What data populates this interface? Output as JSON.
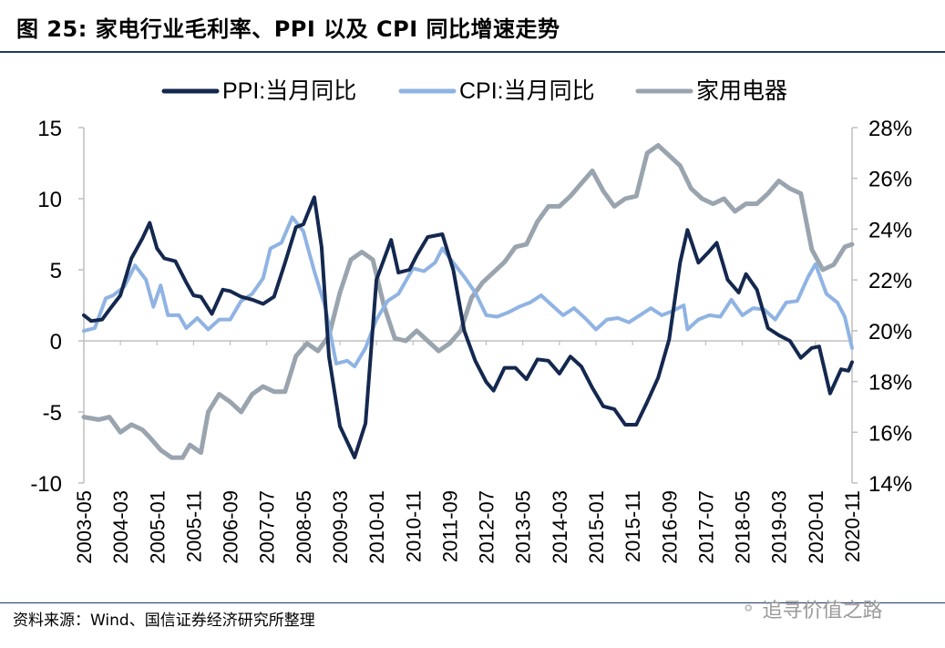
{
  "header": {
    "title": "图 25:  家电行业毛利率、PPI 以及 CPI 同比增速走势"
  },
  "footer": {
    "source": "资料来源：Wind、国信证券经济研究所整理",
    "watermark": "追寻价值之路",
    "watermark_icon": "wechat-icon"
  },
  "colors": {
    "ppi": "#14284f",
    "cpi": "#8fb3e3",
    "appliance": "#9aa4ae",
    "rule": "#1f3864"
  },
  "chart_data": {
    "type": "line",
    "title": "",
    "xlabel": "",
    "ylabel_left": "",
    "ylabel_right": "",
    "legend_position": "top-center",
    "grid": false,
    "y_left_range": [
      -10,
      15
    ],
    "y_left_ticks": [
      "15",
      "10",
      "5",
      "0",
      "-5",
      "-10"
    ],
    "y_right_range": [
      14,
      28
    ],
    "y_right_ticks": [
      "28%",
      "26%",
      "24%",
      "22%",
      "20%",
      "18%",
      "16%",
      "14%"
    ],
    "x_range": [
      "2003-05",
      "2020-11"
    ],
    "x_ticks": [
      "2003-05",
      "2004-03",
      "2005-01",
      "2005-11",
      "2006-09",
      "2007-07",
      "2008-05",
      "2009-03",
      "2010-01",
      "2010-11",
      "2011-09",
      "2012-07",
      "2013-05",
      "2014-03",
      "2015-01",
      "2015-11",
      "2016-09",
      "2017-07",
      "2018-05",
      "2019-03",
      "2020-01",
      "2020-11"
    ],
    "series": [
      {
        "name": "PPI:当月同比",
        "axis": "left",
        "points": [
          [
            "2003-05",
            1.8
          ],
          [
            "2003-07",
            1.4
          ],
          [
            "2003-10",
            1.5
          ],
          [
            "2003-12",
            2.2
          ],
          [
            "2004-03",
            3.2
          ],
          [
            "2004-06",
            5.8
          ],
          [
            "2004-09",
            7.2
          ],
          [
            "2004-11",
            8.3
          ],
          [
            "2005-01",
            6.5
          ],
          [
            "2005-03",
            5.8
          ],
          [
            "2005-06",
            5.6
          ],
          [
            "2005-09",
            4.1
          ],
          [
            "2005-11",
            3.2
          ],
          [
            "2006-01",
            3.1
          ],
          [
            "2006-04",
            1.9
          ],
          [
            "2006-07",
            3.6
          ],
          [
            "2006-09",
            3.5
          ],
          [
            "2006-12",
            3.1
          ],
          [
            "2007-03",
            2.9
          ],
          [
            "2007-06",
            2.6
          ],
          [
            "2007-09",
            3.1
          ],
          [
            "2007-12",
            5.5
          ],
          [
            "2008-03",
            8.0
          ],
          [
            "2008-05",
            8.2
          ],
          [
            "2008-08",
            10.1
          ],
          [
            "2008-10",
            6.6
          ],
          [
            "2008-12",
            -1.1
          ],
          [
            "2009-03",
            -6.0
          ],
          [
            "2009-07",
            -8.2
          ],
          [
            "2009-10",
            -5.8
          ],
          [
            "2010-01",
            4.3
          ],
          [
            "2010-05",
            7.1
          ],
          [
            "2010-07",
            4.8
          ],
          [
            "2010-10",
            5.0
          ],
          [
            "2010-12",
            6.0
          ],
          [
            "2011-03",
            7.3
          ],
          [
            "2011-07",
            7.5
          ],
          [
            "2011-10",
            5.0
          ],
          [
            "2012-01",
            0.7
          ],
          [
            "2012-04",
            -1.4
          ],
          [
            "2012-07",
            -2.9
          ],
          [
            "2012-09",
            -3.5
          ],
          [
            "2012-12",
            -1.9
          ],
          [
            "2013-03",
            -1.9
          ],
          [
            "2013-06",
            -2.7
          ],
          [
            "2013-09",
            -1.3
          ],
          [
            "2013-12",
            -1.4
          ],
          [
            "2014-03",
            -2.3
          ],
          [
            "2014-06",
            -1.1
          ],
          [
            "2014-09",
            -1.8
          ],
          [
            "2014-12",
            -3.3
          ],
          [
            "2015-03",
            -4.6
          ],
          [
            "2015-06",
            -4.8
          ],
          [
            "2015-09",
            -5.9
          ],
          [
            "2015-12",
            -5.9
          ],
          [
            "2016-03",
            -4.3
          ],
          [
            "2016-06",
            -2.6
          ],
          [
            "2016-09",
            0.1
          ],
          [
            "2016-12",
            5.5
          ],
          [
            "2017-02",
            7.8
          ],
          [
            "2017-05",
            5.5
          ],
          [
            "2017-08",
            6.3
          ],
          [
            "2017-10",
            6.9
          ],
          [
            "2018-01",
            4.3
          ],
          [
            "2018-04",
            3.4
          ],
          [
            "2018-06",
            4.7
          ],
          [
            "2018-09",
            3.6
          ],
          [
            "2018-12",
            0.9
          ],
          [
            "2019-03",
            0.4
          ],
          [
            "2019-06",
            0.0
          ],
          [
            "2019-09",
            -1.2
          ],
          [
            "2019-12",
            -0.5
          ],
          [
            "2020-02",
            -0.4
          ],
          [
            "2020-05",
            -3.7
          ],
          [
            "2020-08",
            -2.0
          ],
          [
            "2020-10",
            -2.1
          ],
          [
            "2020-11",
            -1.5
          ]
        ]
      },
      {
        "name": "CPI:当月同比",
        "axis": "left",
        "points": [
          [
            "2003-05",
            0.7
          ],
          [
            "2003-08",
            0.9
          ],
          [
            "2003-11",
            3.0
          ],
          [
            "2004-01",
            3.2
          ],
          [
            "2004-04",
            3.8
          ],
          [
            "2004-07",
            5.3
          ],
          [
            "2004-10",
            4.3
          ],
          [
            "2004-12",
            2.4
          ],
          [
            "2005-02",
            3.9
          ],
          [
            "2005-04",
            1.8
          ],
          [
            "2005-07",
            1.8
          ],
          [
            "2005-09",
            0.9
          ],
          [
            "2005-12",
            1.6
          ],
          [
            "2006-03",
            0.8
          ],
          [
            "2006-06",
            1.5
          ],
          [
            "2006-09",
            1.5
          ],
          [
            "2006-12",
            2.8
          ],
          [
            "2007-03",
            3.3
          ],
          [
            "2007-06",
            4.4
          ],
          [
            "2007-08",
            6.5
          ],
          [
            "2007-11",
            6.9
          ],
          [
            "2008-02",
            8.7
          ],
          [
            "2008-05",
            7.7
          ],
          [
            "2008-08",
            4.9
          ],
          [
            "2008-11",
            2.4
          ],
          [
            "2009-02",
            -1.6
          ],
          [
            "2009-05",
            -1.4
          ],
          [
            "2009-07",
            -1.8
          ],
          [
            "2009-10",
            -0.5
          ],
          [
            "2010-01",
            1.5
          ],
          [
            "2010-04",
            2.8
          ],
          [
            "2010-07",
            3.3
          ],
          [
            "2010-11",
            5.1
          ],
          [
            "2011-02",
            4.9
          ],
          [
            "2011-05",
            5.5
          ],
          [
            "2011-07",
            6.5
          ],
          [
            "2011-10",
            5.5
          ],
          [
            "2012-01",
            4.5
          ],
          [
            "2012-04",
            3.4
          ],
          [
            "2012-07",
            1.8
          ],
          [
            "2012-10",
            1.7
          ],
          [
            "2013-01",
            2.0
          ],
          [
            "2013-04",
            2.4
          ],
          [
            "2013-07",
            2.7
          ],
          [
            "2013-10",
            3.2
          ],
          [
            "2014-01",
            2.5
          ],
          [
            "2014-04",
            1.8
          ],
          [
            "2014-07",
            2.3
          ],
          [
            "2014-10",
            1.6
          ],
          [
            "2015-01",
            0.8
          ],
          [
            "2015-04",
            1.5
          ],
          [
            "2015-07",
            1.6
          ],
          [
            "2015-10",
            1.3
          ],
          [
            "2016-01",
            1.8
          ],
          [
            "2016-04",
            2.3
          ],
          [
            "2016-07",
            1.8
          ],
          [
            "2016-10",
            2.1
          ],
          [
            "2017-01",
            2.5
          ],
          [
            "2017-02",
            0.8
          ],
          [
            "2017-05",
            1.5
          ],
          [
            "2017-08",
            1.8
          ],
          [
            "2017-11",
            1.7
          ],
          [
            "2018-02",
            2.9
          ],
          [
            "2018-05",
            1.8
          ],
          [
            "2018-08",
            2.3
          ],
          [
            "2018-11",
            2.2
          ],
          [
            "2019-02",
            1.5
          ],
          [
            "2019-05",
            2.7
          ],
          [
            "2019-08",
            2.8
          ],
          [
            "2019-11",
            4.5
          ],
          [
            "2020-01",
            5.4
          ],
          [
            "2020-04",
            3.3
          ],
          [
            "2020-07",
            2.7
          ],
          [
            "2020-09",
            1.7
          ],
          [
            "2020-11",
            -0.5
          ]
        ]
      },
      {
        "name": "家用电器",
        "axis": "right",
        "points": [
          [
            "2003-05",
            16.6
          ],
          [
            "2003-09",
            16.5
          ],
          [
            "2003-12",
            16.6
          ],
          [
            "2004-03",
            16.0
          ],
          [
            "2004-06",
            16.3
          ],
          [
            "2004-09",
            16.1
          ],
          [
            "2004-11",
            15.8
          ],
          [
            "2005-02",
            15.3
          ],
          [
            "2005-05",
            15.0
          ],
          [
            "2005-08",
            15.0
          ],
          [
            "2005-10",
            15.5
          ],
          [
            "2006-01",
            15.2
          ],
          [
            "2006-03",
            16.8
          ],
          [
            "2006-06",
            17.5
          ],
          [
            "2006-09",
            17.2
          ],
          [
            "2006-12",
            16.8
          ],
          [
            "2007-03",
            17.5
          ],
          [
            "2007-06",
            17.8
          ],
          [
            "2007-09",
            17.6
          ],
          [
            "2007-12",
            17.6
          ],
          [
            "2008-03",
            19.0
          ],
          [
            "2008-06",
            19.5
          ],
          [
            "2008-09",
            19.2
          ],
          [
            "2008-12",
            19.8
          ],
          [
            "2009-03",
            21.5
          ],
          [
            "2009-06",
            22.8
          ],
          [
            "2009-09",
            23.1
          ],
          [
            "2009-12",
            22.8
          ],
          [
            "2010-03",
            21.0
          ],
          [
            "2010-06",
            19.7
          ],
          [
            "2010-09",
            19.6
          ],
          [
            "2010-12",
            20.0
          ],
          [
            "2011-03",
            19.6
          ],
          [
            "2011-06",
            19.2
          ],
          [
            "2011-09",
            19.5
          ],
          [
            "2011-12",
            20.0
          ],
          [
            "2012-03",
            21.3
          ],
          [
            "2012-06",
            21.9
          ],
          [
            "2012-09",
            22.3
          ],
          [
            "2012-12",
            22.7
          ],
          [
            "2013-03",
            23.3
          ],
          [
            "2013-06",
            23.4
          ],
          [
            "2013-09",
            24.3
          ],
          [
            "2013-12",
            24.9
          ],
          [
            "2014-03",
            24.9
          ],
          [
            "2014-06",
            25.3
          ],
          [
            "2014-09",
            25.8
          ],
          [
            "2014-12",
            26.3
          ],
          [
            "2015-03",
            25.5
          ],
          [
            "2015-06",
            24.9
          ],
          [
            "2015-09",
            25.2
          ],
          [
            "2015-12",
            25.3
          ],
          [
            "2016-03",
            27.0
          ],
          [
            "2016-06",
            27.3
          ],
          [
            "2016-09",
            26.9
          ],
          [
            "2016-12",
            26.5
          ],
          [
            "2017-03",
            25.6
          ],
          [
            "2017-06",
            25.2
          ],
          [
            "2017-09",
            25.0
          ],
          [
            "2017-12",
            25.2
          ],
          [
            "2018-03",
            24.7
          ],
          [
            "2018-06",
            25.0
          ],
          [
            "2018-09",
            25.0
          ],
          [
            "2018-12",
            25.4
          ],
          [
            "2019-03",
            25.9
          ],
          [
            "2019-06",
            25.6
          ],
          [
            "2019-09",
            25.4
          ],
          [
            "2019-12",
            23.2
          ],
          [
            "2020-03",
            22.4
          ],
          [
            "2020-06",
            22.6
          ],
          [
            "2020-09",
            23.3
          ],
          [
            "2020-11",
            23.4
          ]
        ]
      }
    ]
  }
}
